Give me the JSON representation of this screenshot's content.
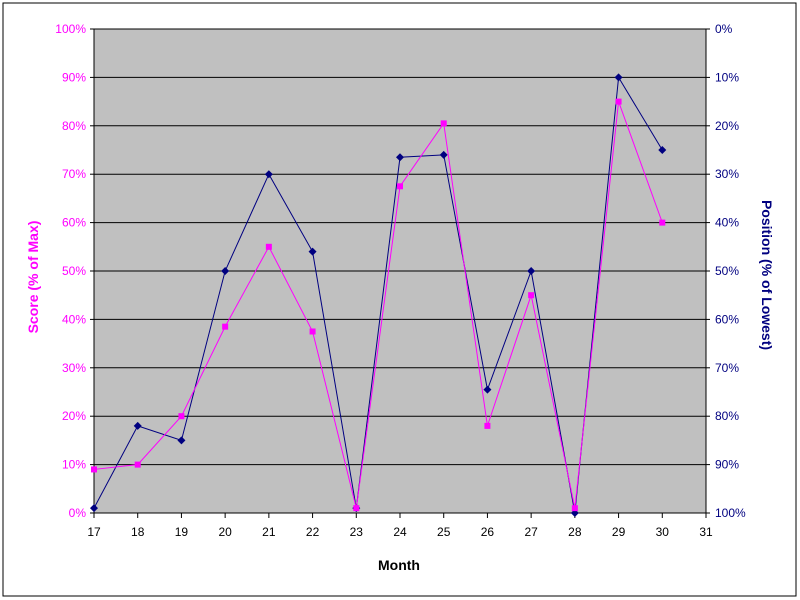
{
  "colors": {
    "score": "#ff00ff",
    "position": "#000080",
    "plot_bg": "#c0c0c0",
    "grid": "#000000"
  },
  "chart_data": {
    "type": "line",
    "xlabel": "Month",
    "ylabel": "Score (% of Max)",
    "y2label": "Position (% of Lowest)",
    "xlim": [
      17,
      31
    ],
    "ylim": [
      0,
      100
    ],
    "y2lim": [
      100,
      0
    ],
    "y2_reversed": true,
    "grid": true,
    "x_ticks": [
      "17",
      "18",
      "19",
      "20",
      "21",
      "22",
      "23",
      "24",
      "25",
      "26",
      "27",
      "28",
      "29",
      "30",
      "31"
    ],
    "y_ticks": [
      "0%",
      "10%",
      "20%",
      "30%",
      "40%",
      "50%",
      "60%",
      "70%",
      "80%",
      "90%",
      "100%"
    ],
    "y2_ticks": [
      "100%",
      "90%",
      "80%",
      "70%",
      "60%",
      "50%",
      "40%",
      "30%",
      "20%",
      "10%",
      "0%"
    ],
    "series": [
      {
        "key": "score",
        "axis": "left",
        "marker": "square",
        "x": [
          17,
          18,
          19,
          20,
          21,
          22,
          23,
          24,
          25,
          26,
          27,
          28,
          29,
          30
        ],
        "y": [
          9,
          10,
          20,
          38.5,
          55,
          37.5,
          1,
          67.5,
          80.5,
          18,
          45,
          1,
          85,
          60
        ]
      },
      {
        "key": "position",
        "axis": "right",
        "marker": "diamond",
        "x": [
          17,
          18,
          19,
          20,
          21,
          22,
          23,
          24,
          25,
          26,
          27,
          28,
          29,
          30
        ],
        "y": [
          99,
          82,
          85,
          50,
          30,
          46,
          99,
          26.5,
          26,
          74.5,
          50,
          100,
          10,
          25
        ]
      }
    ]
  }
}
